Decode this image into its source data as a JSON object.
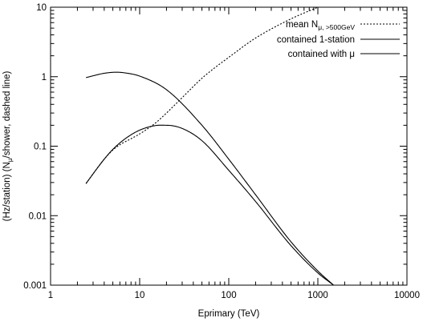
{
  "chart_data": {
    "type": "line",
    "title": "",
    "xlabel": "Eprimary (TeV)",
    "ylabel_parts": [
      "(Hz/station)  (N",
      "μ",
      "/shower, dashed line)"
    ],
    "xscale": "log",
    "yscale": "log",
    "xlim": [
      1,
      10000
    ],
    "ylim": [
      0.001,
      10
    ],
    "xticks": [
      1,
      10,
      100,
      1000,
      10000
    ],
    "xtick_labels": [
      "1",
      "10",
      "100",
      "1000",
      "10000"
    ],
    "yticks": [
      0.001,
      0.01,
      0.1,
      1,
      10
    ],
    "ytick_labels": [
      "0.001",
      "0.01",
      "0.1",
      "1",
      "10"
    ],
    "grid": false,
    "legend_position": "top-right",
    "series": [
      {
        "name": "mean Nμ, >500GeV",
        "legend_main": "mean N",
        "legend_sub": "μ, >500GeV",
        "style": "dotted",
        "x": [
          2.5,
          3,
          4,
          5,
          6,
          8,
          10,
          15,
          20,
          30,
          50,
          70,
          100,
          200,
          500,
          1000
        ],
        "y": [
          0.029,
          0.04,
          0.065,
          0.088,
          0.105,
          0.128,
          0.15,
          0.215,
          0.3,
          0.5,
          0.95,
          1.35,
          1.9,
          3.6,
          6.8,
          10
        ]
      },
      {
        "name": "contained 1-station",
        "legend_main": "contained 1-station",
        "style": "solid",
        "x": [
          2.5,
          3,
          4,
          5.5,
          7,
          10,
          20,
          50,
          100,
          200,
          500,
          1000,
          1500
        ],
        "y": [
          0.97,
          1.03,
          1.12,
          1.16,
          1.13,
          1.02,
          0.65,
          0.2,
          0.065,
          0.02,
          0.0042,
          0.0016,
          0.001
        ]
      },
      {
        "name": "contained with μ",
        "legend_main": "contained with μ",
        "style": "solid",
        "x": [
          2.5,
          3,
          4,
          5,
          7,
          10,
          15,
          20,
          30,
          50,
          100,
          200,
          500,
          1000,
          1500
        ],
        "y": [
          0.029,
          0.04,
          0.065,
          0.09,
          0.13,
          0.17,
          0.198,
          0.2,
          0.18,
          0.12,
          0.045,
          0.016,
          0.0037,
          0.0015,
          0.001
        ]
      }
    ]
  }
}
